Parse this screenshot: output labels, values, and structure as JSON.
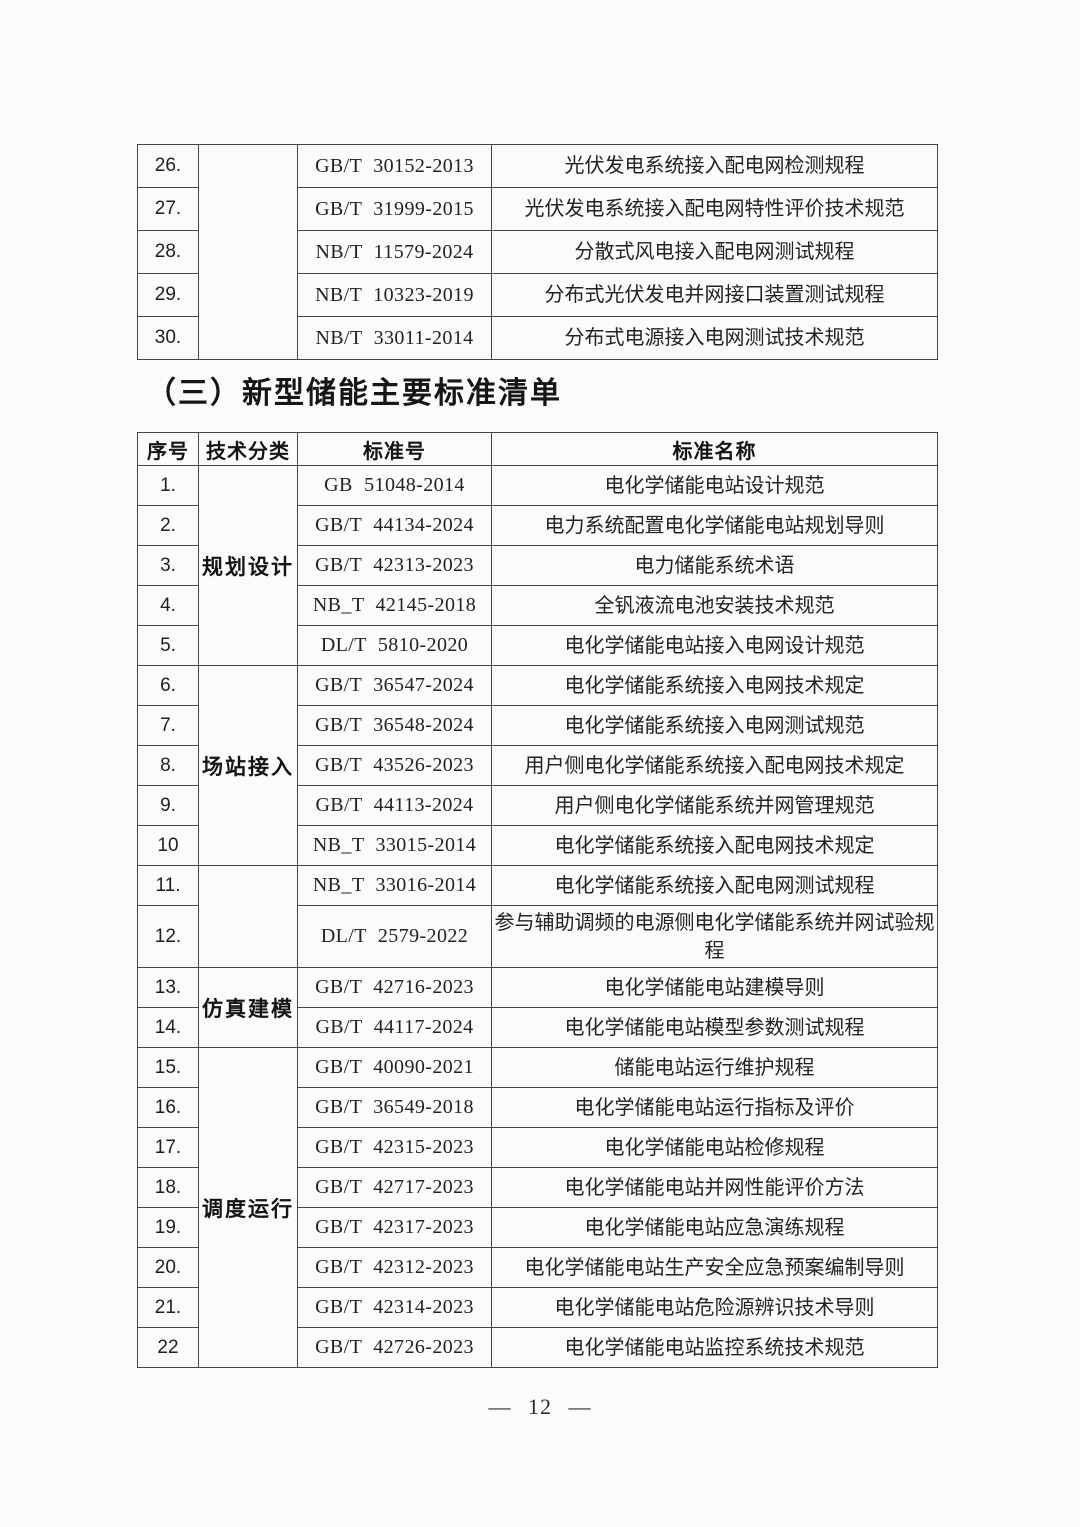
{
  "document": {
    "heading": "（三）新型储能主要标准清单",
    "footer": "— 12 —"
  },
  "top_table": {
    "category_label": "",
    "rows": [
      {
        "no": "26.",
        "code": "GB/T 30152-2013",
        "name": "光伏发电系统接入配电网检测规程"
      },
      {
        "no": "27.",
        "code": "GB/T 31999-2015",
        "name": "光伏发电系统接入配电网特性评价技术规范"
      },
      {
        "no": "28.",
        "code": "NB/T 11579-2024",
        "name": "分散式风电接入配电网测试规程"
      },
      {
        "no": "29.",
        "code": "NB/T 10323-2019",
        "name": "分布式光伏发电并网接口装置测试规程"
      },
      {
        "no": "30.",
        "code": "NB/T 33011-2014",
        "name": "分布式电源接入电网测试技术规范"
      }
    ]
  },
  "main_table": {
    "headers": [
      "序号",
      "技术分类",
      "标准号",
      "标准名称"
    ],
    "categories": [
      {
        "label": "规划设计",
        "from": 1,
        "to": 5
      },
      {
        "label": "场站接入",
        "from": 6,
        "to": 10
      },
      {
        "label": "",
        "from": 11,
        "to": 12
      },
      {
        "label": "仿真建模",
        "from": 13,
        "to": 14
      },
      {
        "label": "调度运行",
        "from": 15,
        "to": 22
      }
    ],
    "rows": [
      {
        "no": "1.",
        "code": "GB 51048-2014",
        "name": "电化学储能电站设计规范"
      },
      {
        "no": "2.",
        "code": "GB/T 44134-2024",
        "name": "电力系统配置电化学储能电站规划导则"
      },
      {
        "no": "3.",
        "code": "GB/T 42313-2023",
        "name": "电力储能系统术语"
      },
      {
        "no": "4.",
        "code": "NB_T 42145-2018",
        "name": "全钒液流电池安装技术规范"
      },
      {
        "no": "5.",
        "code": "DL/T 5810-2020",
        "name": "电化学储能电站接入电网设计规范"
      },
      {
        "no": "6.",
        "code": "GB/T 36547-2024",
        "name": "电化学储能系统接入电网技术规定"
      },
      {
        "no": "7.",
        "code": "GB/T 36548-2024",
        "name": "电化学储能系统接入电网测试规范"
      },
      {
        "no": "8.",
        "code": "GB/T 43526-2023",
        "name": "用户侧电化学储能系统接入配电网技术规定"
      },
      {
        "no": "9.",
        "code": "GB/T 44113-2024",
        "name": "用户侧电化学储能系统并网管理规范"
      },
      {
        "no": "10",
        "code": "NB_T 33015-2014",
        "name": "电化学储能系统接入配电网技术规定"
      },
      {
        "no": "11.",
        "code": "NB_T 33016-2014",
        "name": "电化学储能系统接入配电网测试规程"
      },
      {
        "no": "12.",
        "code": "DL/T 2579-2022",
        "name": "参与辅助调频的电源侧电化学储能系统并网试验规程"
      },
      {
        "no": "13.",
        "code": "GB/T 42716-2023",
        "name": "电化学储能电站建模导则"
      },
      {
        "no": "14.",
        "code": "GB/T 44117-2024",
        "name": "电化学储能电站模型参数测试规程"
      },
      {
        "no": "15.",
        "code": "GB/T 40090-2021",
        "name": "储能电站运行维护规程"
      },
      {
        "no": "16.",
        "code": "GB/T 36549-2018",
        "name": "电化学储能电站运行指标及评价"
      },
      {
        "no": "17.",
        "code": "GB/T 42315-2023",
        "name": "电化学储能电站检修规程"
      },
      {
        "no": "18.",
        "code": "GB/T 42717-2023",
        "name": "电化学储能电站并网性能评价方法"
      },
      {
        "no": "19.",
        "code": "GB/T 42317-2023",
        "name": "电化学储能电站应急演练规程"
      },
      {
        "no": "20.",
        "code": "GB/T 42312-2023",
        "name": "电化学储能电站生产安全应急预案编制导则"
      },
      {
        "no": "21.",
        "code": "GB/T 42314-2023",
        "name": "电化学储能电站危险源辨识技术导则"
      },
      {
        "no": "22",
        "code": "GB/T 42726-2023",
        "name": "电化学储能电站监控系统技术规范"
      }
    ]
  }
}
